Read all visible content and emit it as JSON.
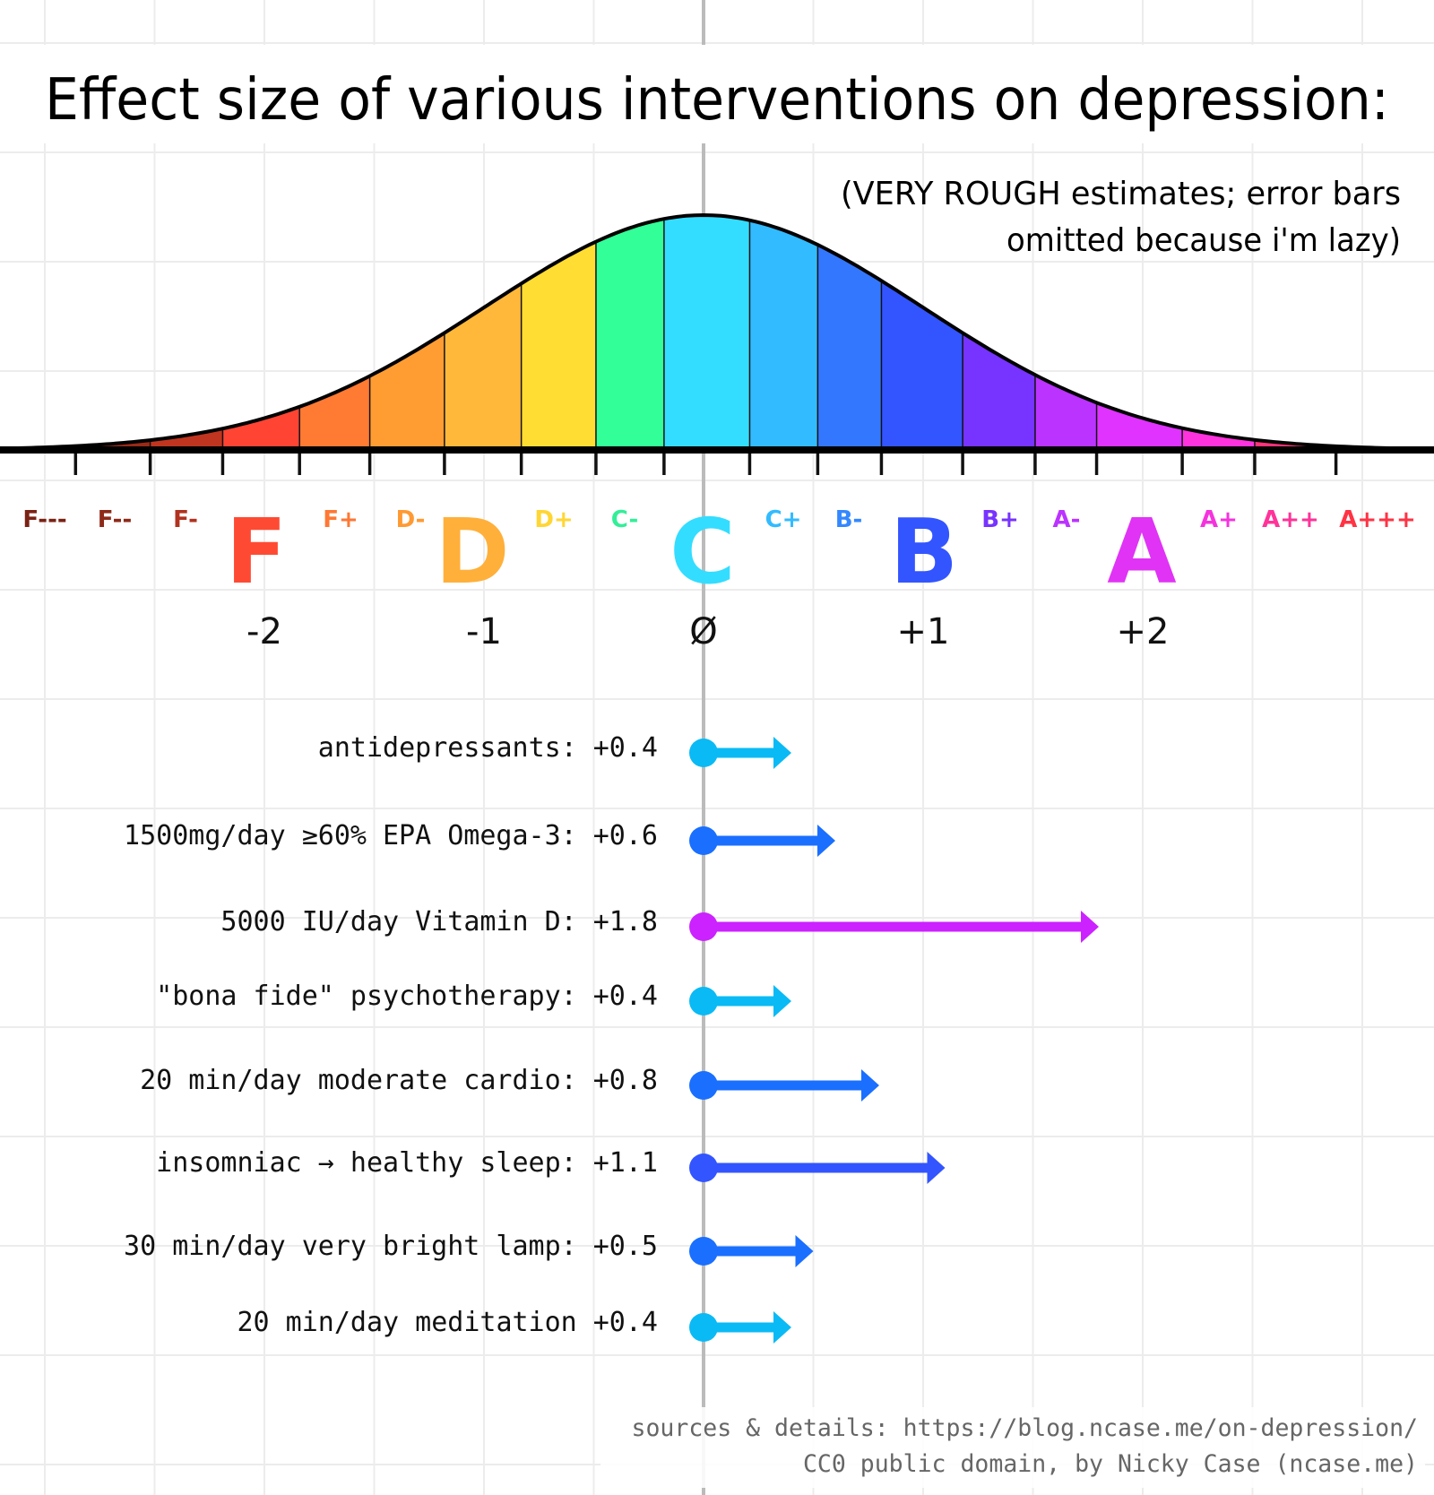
{
  "chart_data": {
    "type": "bar",
    "title": "Effect size of various interventions on depression:",
    "subtitle": [
      "(VERY ROUGH estimates; error bars",
      "omitted because i'm lazy)"
    ],
    "xlim": [
      -3.2,
      3.3
    ],
    "grid": true,
    "axis_ticks": [
      {
        "value": -2,
        "label": "-2"
      },
      {
        "value": -1,
        "label": "-1"
      },
      {
        "value": 0,
        "label": "Ø"
      },
      {
        "value": 1,
        "label": "+1"
      },
      {
        "value": 2,
        "label": "+2"
      }
    ],
    "grades": [
      {
        "label": "F---",
        "color": "#7a2214",
        "big": false
      },
      {
        "label": "F--",
        "color": "#8e2a18",
        "big": false
      },
      {
        "label": "F-",
        "color": "#b0321f",
        "big": false
      },
      {
        "label": "F",
        "color": "#ff4a33",
        "big": true
      },
      {
        "label": "F+",
        "color": "#ff7733",
        "big": false
      },
      {
        "label": "D-",
        "color": "#ff9a33",
        "big": false
      },
      {
        "label": "D",
        "color": "#ffb03a",
        "big": true
      },
      {
        "label": "D+",
        "color": "#ffd633",
        "big": false
      },
      {
        "label": "C-",
        "color": "#33ee99",
        "big": false
      },
      {
        "label": "C",
        "color": "#33ddff",
        "big": true
      },
      {
        "label": "C+",
        "color": "#33bbff",
        "big": false
      },
      {
        "label": "B-",
        "color": "#3388ff",
        "big": false
      },
      {
        "label": "B",
        "color": "#3355ff",
        "big": true
      },
      {
        "label": "B+",
        "color": "#7733ff",
        "big": false
      },
      {
        "label": "A-",
        "color": "#bb33ff",
        "big": false
      },
      {
        "label": "A",
        "color": "#e033f5",
        "big": true
      },
      {
        "label": "A+",
        "color": "#f533dd",
        "big": false
      },
      {
        "label": "A++",
        "color": "#ff3399",
        "big": false
      },
      {
        "label": "A+++",
        "color": "#ff3344",
        "big": false
      }
    ],
    "band_colors": [
      "#7a2214",
      "#9a2a18",
      "#c0351f",
      "#ff4433",
      "#ff7a33",
      "#ff9d33",
      "#ffb83a",
      "#ffdd33",
      "#33ff99",
      "#33ddff",
      "#33bbff",
      "#3377ff",
      "#3355ff",
      "#7733ff",
      "#bb33ff",
      "#e033ff",
      "#ff33dd",
      "#ff3377",
      "#ff4433"
    ],
    "categories": [
      "antidepressants:",
      "1500mg/day ≥60% EPA Omega-3:",
      "5000 IU/day Vitamin D:",
      "\"bona fide\" psychotherapy:",
      "20 min/day moderate cardio:",
      "insomniac → healthy sleep:",
      "30 min/day very bright lamp:",
      "20 min/day meditation"
    ],
    "values": [
      0.4,
      0.6,
      1.8,
      0.4,
      0.8,
      1.1,
      0.5,
      0.4
    ],
    "value_labels": [
      "+0.4",
      "+0.6",
      "+1.8",
      "+0.4",
      "+0.8",
      "+1.1",
      "+0.5",
      "+0.4"
    ],
    "bar_colors": [
      "#0abaf5",
      "#1a6fff",
      "#cc22ff",
      "#0abaf5",
      "#1a6fff",
      "#3355ff",
      "#1a6fff",
      "#0abaf5"
    ]
  },
  "footer": {
    "sources": "sources & details: https://blog.ncase.me/on-depression/",
    "license": "CC0 public domain, by Nicky Case (ncase.me)"
  }
}
